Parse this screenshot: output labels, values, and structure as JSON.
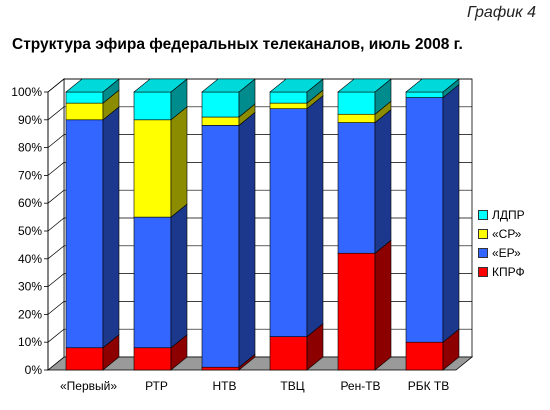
{
  "figure_label": "График 4",
  "chart_data": {
    "type": "bar",
    "stacked": true,
    "style": "3d-stacked-percent",
    "title": "Структура эфира федеральных телеканалов, июль 2008 г.",
    "categories": [
      "«Первый»",
      "РТР",
      "НТВ",
      "ТВЦ",
      "Рен-ТВ",
      "РБК ТВ"
    ],
    "series": [
      {
        "name": "КПРФ",
        "color": "#ff0000",
        "values": [
          8,
          8,
          1,
          12,
          42,
          10
        ]
      },
      {
        "name": "«ЕР»",
        "color": "#3366ff",
        "values": [
          82,
          47,
          87,
          82,
          47,
          88
        ]
      },
      {
        "name": "«СР»",
        "color": "#ffff00",
        "values": [
          6,
          35,
          3,
          2,
          3,
          0
        ]
      },
      {
        "name": "ЛДПР",
        "color": "#00ffff",
        "values": [
          4,
          10,
          9,
          4,
          8,
          2
        ]
      }
    ],
    "y_ticks": [
      "0%",
      "10%",
      "20%",
      "30%",
      "40%",
      "50%",
      "60%",
      "70%",
      "80%",
      "90%",
      "100%"
    ],
    "ylim": [
      0,
      100
    ],
    "grid": true,
    "legend_position": "right"
  }
}
